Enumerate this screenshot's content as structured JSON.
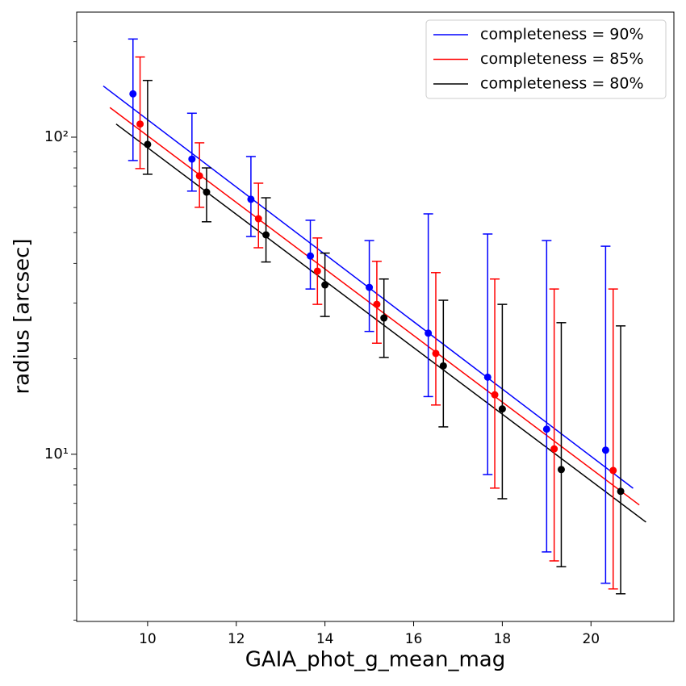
{
  "chart_data": {
    "type": "errorbar",
    "xlabel": "GAIA_phot_g_mean_mag",
    "ylabel": "radius [arcsec]",
    "xlim": [
      8.4,
      21.87
    ],
    "ylim": [
      2.97,
      248
    ],
    "yscale": "log",
    "xticks": [
      10,
      12,
      14,
      16,
      18,
      20
    ],
    "yticks": [
      {
        "value": 10,
        "label": "10¹"
      },
      {
        "value": 100,
        "label": "10²"
      }
    ],
    "yminorticks": [
      3,
      4,
      5,
      6,
      7,
      8,
      9,
      20,
      30,
      40,
      50,
      60,
      70,
      80,
      90,
      200
    ],
    "legend": "upper right",
    "series": [
      {
        "name": "completeness = 90%",
        "color": "#0000ff",
        "x": [
          9.67,
          11.0,
          12.33,
          13.67,
          15.0,
          16.33,
          17.67,
          19.0,
          20.33
        ],
        "values": [
          137,
          85.3,
          63.7,
          42.2,
          33.6,
          24.1,
          17.5,
          12.0,
          10.3
        ],
        "lower": [
          84.4,
          67.6,
          48.6,
          33.2,
          24.4,
          15.2,
          8.63,
          4.92,
          3.92
        ],
        "upper": [
          204,
          119,
          86.9,
          54.7,
          47.2,
          57.3,
          49.5,
          47.2,
          45.3
        ],
        "fit": {
          "x": [
            9.0,
            20.95
          ],
          "values": [
            145,
            7.81
          ]
        }
      },
      {
        "name": "completeness = 85%",
        "color": "#ff0000",
        "x": [
          9.83,
          11.17,
          12.5,
          13.83,
          15.17,
          16.5,
          17.83,
          19.17,
          20.5
        ],
        "values": [
          110,
          75.5,
          55.3,
          37.8,
          29.7,
          20.8,
          15.4,
          10.4,
          8.89
        ],
        "lower": [
          79.6,
          60.1,
          44.8,
          29.7,
          22.4,
          14.3,
          7.82,
          4.61,
          3.76
        ],
        "upper": [
          179,
          96,
          71.6,
          48.1,
          40.6,
          37.4,
          35.7,
          33.2,
          33.2
        ],
        "fit": {
          "x": [
            9.15,
            21.09
          ],
          "values": [
            124,
            6.92
          ]
        }
      },
      {
        "name": "completeness = 80%",
        "color": "#000000",
        "x": [
          10.0,
          11.33,
          12.67,
          14.0,
          15.33,
          16.67,
          18.0,
          19.33,
          20.67
        ],
        "values": [
          94.9,
          67.1,
          49.2,
          34.2,
          26.9,
          19.0,
          13.9,
          8.95,
          7.64
        ],
        "lower": [
          76.4,
          54.1,
          40.4,
          27.2,
          20.2,
          12.2,
          7.24,
          4.42,
          3.63
        ],
        "upper": [
          151,
          80.0,
          64.4,
          43.1,
          35.7,
          30.6,
          29.7,
          26.0,
          25.4
        ],
        "fit": {
          "x": [
            9.29,
            21.24
          ],
          "values": [
            110,
            6.11
          ]
        }
      }
    ]
  }
}
